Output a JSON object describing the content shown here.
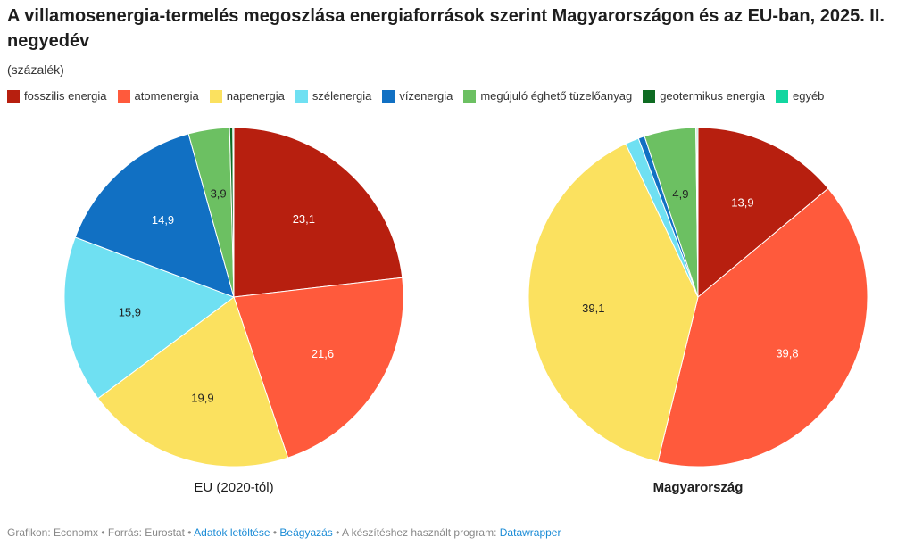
{
  "title": "A villamosenergia-termelés megoszlása energiaforrások szerint Magyarországon és az EU-ban, 2025. II. negyedév",
  "subtitle": "(százalék)",
  "chart_data": {
    "type": "pie",
    "categories": [
      "fosszilis energia",
      "atomenergia",
      "napenergia",
      "szélenergia",
      "vízenergia",
      "megújuló éghető tüzelőanyag",
      "geotermikus energia",
      "egyéb"
    ],
    "colors": [
      "#b71f0f",
      "#ff5a3c",
      "#fbe15f",
      "#6fe0f2",
      "#1170c3",
      "#6cc062",
      "#0e6b22",
      "#12d6a0"
    ],
    "pies": [
      {
        "name": "EU (2020-tól)",
        "values": [
          23.1,
          21.6,
          19.9,
          15.9,
          14.9,
          3.9,
          0.3,
          0.1
        ],
        "labels": [
          "23,1",
          "21,6",
          "19,9",
          "15,9",
          "14,9",
          "3,9",
          "",
          ""
        ]
      },
      {
        "name": "Magyarország",
        "values": [
          13.9,
          39.8,
          39.1,
          1.3,
          0.6,
          4.9,
          0.1,
          0.1
        ],
        "labels": [
          "13,9",
          "39,8",
          "39,1",
          "",
          "",
          "4,9",
          "",
          ""
        ]
      }
    ]
  },
  "footer": {
    "credit": "Grafikon: Economx • Forrás: Eurostat • ",
    "download": "Adatok letöltése",
    "sep": " • ",
    "embed": "Beágyazás",
    "tool": "  • A készítéshez használt program: ",
    "datawrapper": "Datawrapper"
  }
}
